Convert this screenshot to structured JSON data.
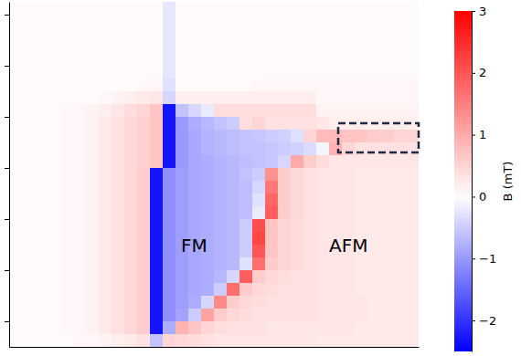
{
  "chart_data": {
    "type": "heatmap",
    "xlim": [
      0,
      8
    ],
    "ylim": [
      -0.5,
      6.25
    ],
    "yticks": [
      0,
      1,
      2,
      3,
      4,
      5,
      6
    ],
    "tick_labels": false,
    "cells": [
      [
        0.05,
        0.05,
        0.05,
        0.05,
        0.05,
        0.05,
        0.05,
        0.05,
        0.05,
        0.05,
        0.05,
        0.05,
        -0.25,
        0.05,
        0.05,
        0.05,
        0.05,
        0.05,
        0.05,
        0.05,
        0.05,
        0.05,
        0.05,
        0.05,
        0.05,
        0.05,
        0.05,
        0.05,
        0.05,
        0.05,
        0.05,
        0.05
      ],
      [
        0.05,
        0.05,
        0.05,
        0.05,
        0.05,
        0.05,
        0.05,
        0.05,
        0.05,
        0.05,
        0.05,
        0.05,
        -0.25,
        0.05,
        0.05,
        0.05,
        0.05,
        0.05,
        0.05,
        0.05,
        0.05,
        0.05,
        0.05,
        0.05,
        0.05,
        0.05,
        0.05,
        0.05,
        0.05,
        0.05,
        0.05,
        0.05
      ],
      [
        0.05,
        0.05,
        0.05,
        0.05,
        0.05,
        0.05,
        0.05,
        0.05,
        0.05,
        0.05,
        0.05,
        0.05,
        -0.25,
        0.05,
        0.05,
        0.05,
        0.05,
        0.05,
        0.05,
        0.05,
        0.05,
        0.05,
        0.05,
        0.05,
        0.05,
        0.05,
        0.05,
        0.05,
        0.05,
        0.05,
        0.05,
        0.05
      ],
      [
        0.05,
        0.05,
        0.05,
        0.05,
        0.05,
        0.05,
        0.05,
        0.05,
        0.05,
        0.05,
        0.05,
        0.05,
        -0.25,
        0.05,
        0.05,
        0.05,
        0.05,
        0.05,
        0.05,
        0.05,
        0.05,
        0.05,
        0.05,
        0.05,
        0.05,
        0.05,
        0.05,
        0.05,
        0.05,
        0.05,
        0.05,
        0.05
      ],
      [
        0.05,
        0.05,
        0.05,
        0.05,
        0.05,
        0.05,
        0.05,
        0.05,
        0.05,
        0.05,
        0.05,
        0.05,
        -0.25,
        0.05,
        0.05,
        0.05,
        0.05,
        0.05,
        0.05,
        0.05,
        0.05,
        0.05,
        0.05,
        0.05,
        0.05,
        0.05,
        0.05,
        0.05,
        0.05,
        0.05,
        0.05,
        0.05
      ],
      [
        0.05,
        0.05,
        0.05,
        0.05,
        0.05,
        0.05,
        0.05,
        0.05,
        0.05,
        0.05,
        0.05,
        0.05,
        -0.25,
        0.05,
        0.05,
        0.05,
        0.05,
        0.05,
        0.05,
        0.05,
        0.05,
        0.05,
        0.05,
        0.05,
        0.05,
        0.05,
        0.05,
        0.05,
        0.05,
        0.05,
        0.05,
        0.05
      ],
      [
        0.05,
        0.05,
        0.05,
        0.05,
        0.05,
        0.05,
        0.05,
        0.05,
        0.05,
        0.05,
        0.1,
        0.1,
        -0.3,
        0.05,
        0.05,
        0.05,
        0.05,
        0.05,
        0.05,
        0.1,
        0.1,
        0.1,
        0.1,
        0.1,
        0.1,
        0.1,
        0.1,
        0.1,
        0.1,
        0.1,
        0.1,
        0.1
      ],
      [
        0.05,
        0.05,
        0.05,
        0.05,
        0.05,
        0.05,
        0.05,
        0.1,
        0.15,
        0.2,
        0.25,
        0.3,
        -0.4,
        0.2,
        0.2,
        0.2,
        0.2,
        0.2,
        0.2,
        0.2,
        0.2,
        0.2,
        0.2,
        0.2,
        0.1,
        0.1,
        0.1,
        0.1,
        0.1,
        0.1,
        0.1,
        0.1
      ],
      [
        0.05,
        0.05,
        0.05,
        0.05,
        0.1,
        0.1,
        0.15,
        0.2,
        0.3,
        0.4,
        0.5,
        0.7,
        -2.3,
        -0.6,
        -0.4,
        -0.2,
        0.4,
        0.4,
        0.4,
        0.4,
        0.4,
        0.4,
        0.4,
        0.4,
        0.15,
        0.15,
        0.15,
        0.15,
        0.15,
        0.15,
        0.15,
        0.15
      ],
      [
        0.05,
        0.05,
        0.05,
        0.05,
        0.1,
        0.1,
        0.15,
        0.25,
        0.35,
        0.45,
        0.55,
        0.7,
        -2.3,
        -1.0,
        -0.8,
        -0.7,
        -0.6,
        -0.5,
        0.4,
        0.5,
        0.35,
        0.35,
        0.35,
        0.35,
        0.3,
        0.2,
        0.2,
        0.2,
        0.2,
        0.2,
        0.2,
        0.2
      ],
      [
        0.05,
        0.05,
        0.05,
        0.05,
        0.1,
        0.1,
        0.15,
        0.25,
        0.35,
        0.45,
        0.55,
        0.7,
        -2.3,
        -1.0,
        -0.85,
        -0.75,
        -0.7,
        -0.65,
        -0.6,
        -0.55,
        -0.5,
        -0.45,
        -0.3,
        0.5,
        0.8,
        0.8,
        0.7,
        0.7,
        0.6,
        0.6,
        0.5,
        0.5
      ],
      [
        0.05,
        0.05,
        0.05,
        0.05,
        0.1,
        0.1,
        0.15,
        0.25,
        0.35,
        0.45,
        0.55,
        0.7,
        -2.3,
        -1.0,
        -0.85,
        -0.75,
        -0.7,
        -0.65,
        -0.6,
        -0.6,
        -0.55,
        -0.5,
        -0.45,
        -0.35,
        -0.1,
        0.9,
        0.5,
        0.35,
        0.35,
        0.35,
        0.35,
        0.35
      ],
      [
        0.05,
        0.05,
        0.05,
        0.05,
        0.1,
        0.1,
        0.15,
        0.25,
        0.35,
        0.45,
        0.55,
        0.7,
        -2.3,
        -1.0,
        -0.85,
        -0.8,
        -0.75,
        -0.7,
        -0.65,
        -0.6,
        -0.55,
        -0.4,
        1.0,
        0.6,
        0.4,
        0.3,
        0.3,
        0.3,
        0.3,
        0.3,
        0.3,
        0.3
      ],
      [
        0.05,
        0.05,
        0.05,
        0.05,
        0.1,
        0.1,
        0.15,
        0.25,
        0.35,
        0.45,
        0.6,
        -2.3,
        -1.1,
        -0.95,
        -0.85,
        -0.8,
        -0.75,
        -0.7,
        -0.6,
        -0.5,
        1.3,
        0.6,
        0.45,
        0.35,
        0.3,
        0.3,
        0.3,
        0.25,
        0.25,
        0.25,
        0.25,
        0.25
      ],
      [
        0.05,
        0.05,
        0.05,
        0.05,
        0.1,
        0.1,
        0.15,
        0.25,
        0.35,
        0.45,
        0.6,
        -2.3,
        -1.1,
        -0.95,
        -0.85,
        -0.8,
        -0.75,
        -0.7,
        -0.65,
        -0.4,
        1.6,
        0.6,
        0.45,
        0.35,
        0.3,
        0.3,
        0.3,
        0.25,
        0.25,
        0.25,
        0.25,
        0.25
      ],
      [
        0.05,
        0.05,
        0.05,
        0.05,
        0.1,
        0.1,
        0.15,
        0.25,
        0.35,
        0.45,
        0.6,
        -2.3,
        -1.1,
        -0.95,
        -0.85,
        -0.8,
        -0.75,
        -0.7,
        -0.65,
        -0.3,
        1.8,
        0.6,
        0.45,
        0.35,
        0.3,
        0.3,
        0.3,
        0.25,
        0.25,
        0.25,
        0.25,
        0.25
      ],
      [
        0.05,
        0.05,
        0.05,
        0.05,
        0.1,
        0.1,
        0.15,
        0.25,
        0.35,
        0.45,
        0.6,
        -2.3,
        -1.1,
        -0.95,
        -0.85,
        -0.8,
        -0.75,
        -0.7,
        -0.65,
        -0.2,
        1.9,
        0.6,
        0.45,
        0.35,
        0.3,
        0.3,
        0.3,
        0.25,
        0.25,
        0.25,
        0.25,
        0.25
      ],
      [
        0.05,
        0.05,
        0.05,
        0.05,
        0.1,
        0.1,
        0.15,
        0.25,
        0.35,
        0.45,
        0.6,
        -2.3,
        -1.1,
        -0.95,
        -0.85,
        -0.8,
        -0.75,
        -0.7,
        -0.5,
        2.1,
        0.7,
        0.5,
        0.4,
        0.35,
        0.3,
        0.3,
        0.3,
        0.25,
        0.25,
        0.25,
        0.25,
        0.25
      ],
      [
        0.05,
        0.05,
        0.05,
        0.05,
        0.1,
        0.1,
        0.15,
        0.25,
        0.35,
        0.45,
        0.6,
        -2.3,
        -1.1,
        -0.95,
        -0.85,
        -0.8,
        -0.75,
        -0.7,
        -0.5,
        2.2,
        0.7,
        0.5,
        0.4,
        0.35,
        0.3,
        0.3,
        0.3,
        0.25,
        0.25,
        0.25,
        0.25,
        0.25
      ],
      [
        0.05,
        0.05,
        0.05,
        0.05,
        0.1,
        0.1,
        0.15,
        0.25,
        0.35,
        0.45,
        0.6,
        -2.3,
        -1.1,
        -0.95,
        -0.85,
        -0.8,
        -0.75,
        -0.7,
        -0.5,
        2.0,
        0.7,
        0.5,
        0.4,
        0.35,
        0.3,
        0.3,
        0.3,
        0.25,
        0.25,
        0.25,
        0.25,
        0.25
      ],
      [
        0.05,
        0.05,
        0.05,
        0.05,
        0.1,
        0.1,
        0.15,
        0.25,
        0.35,
        0.45,
        0.6,
        -2.3,
        -1.1,
        -0.95,
        -0.85,
        -0.8,
        -0.75,
        -0.7,
        -0.3,
        1.7,
        0.6,
        0.5,
        0.4,
        0.35,
        0.3,
        0.3,
        0.3,
        0.25,
        0.25,
        0.25,
        0.25,
        0.25
      ],
      [
        0.05,
        0.05,
        0.05,
        0.05,
        0.1,
        0.1,
        0.15,
        0.25,
        0.35,
        0.45,
        0.6,
        -2.3,
        -1.1,
        -0.95,
        -0.85,
        -0.8,
        -0.7,
        -0.4,
        1.9,
        0.6,
        0.45,
        0.4,
        0.35,
        0.35,
        0.3,
        0.3,
        0.3,
        0.25,
        0.25,
        0.25,
        0.25,
        0.25
      ],
      [
        0.05,
        0.05,
        0.05,
        0.05,
        0.1,
        0.1,
        0.15,
        0.25,
        0.35,
        0.45,
        0.6,
        -2.3,
        -1.1,
        -0.95,
        -0.85,
        -0.8,
        -0.5,
        1.7,
        0.6,
        0.45,
        0.4,
        0.35,
        0.35,
        0.35,
        0.3,
        0.3,
        0.3,
        0.25,
        0.25,
        0.25,
        0.25,
        0.25
      ],
      [
        0.05,
        0.05,
        0.05,
        0.05,
        0.1,
        0.1,
        0.15,
        0.25,
        0.35,
        0.45,
        0.6,
        -2.3,
        -1.1,
        -0.95,
        -0.8,
        -0.4,
        1.4,
        0.6,
        0.45,
        0.4,
        0.35,
        0.35,
        0.35,
        0.35,
        0.3,
        0.3,
        0.3,
        0.3,
        0.25,
        0.25,
        0.25,
        0.25
      ],
      [
        0.05,
        0.05,
        0.05,
        0.05,
        0.1,
        0.1,
        0.15,
        0.25,
        0.35,
        0.45,
        0.6,
        -2.3,
        -1.1,
        -0.9,
        -0.5,
        1.1,
        0.6,
        0.45,
        0.4,
        0.35,
        0.35,
        0.35,
        0.35,
        0.35,
        0.3,
        0.3,
        0.3,
        0.3,
        0.25,
        0.25,
        0.25,
        0.25
      ],
      [
        0.05,
        0.05,
        0.05,
        0.05,
        0.1,
        0.1,
        0.15,
        0.25,
        0.35,
        0.45,
        0.6,
        -2.3,
        -0.8,
        0.9,
        0.7,
        0.5,
        0.4,
        0.35,
        0.35,
        0.35,
        0.3,
        0.3,
        0.3,
        0.3,
        0.3,
        0.3,
        0.3,
        0.25,
        0.25,
        0.25,
        0.25,
        0.25
      ],
      [
        0.05,
        0.05,
        0.05,
        0.05,
        0.05,
        0.1,
        0.1,
        0.15,
        0.2,
        0.25,
        0.35,
        -0.6,
        0.5,
        0.45,
        0.4,
        0.35,
        0.3,
        0.3,
        0.3,
        0.3,
        0.3,
        0.3,
        0.3,
        0.3,
        0.25,
        0.25,
        0.25,
        0.25,
        0.25,
        0.25,
        0.25,
        0.25
      ]
    ],
    "colorbar": {
      "label": "B (mT)",
      "range": [
        -2.5,
        3
      ],
      "ticks": [
        {
          "value": -2,
          "label": "−2"
        },
        {
          "value": -1,
          "label": "−1"
        },
        0,
        1,
        2,
        3
      ]
    },
    "annotations": [
      "FM",
      "AFM"
    ]
  }
}
